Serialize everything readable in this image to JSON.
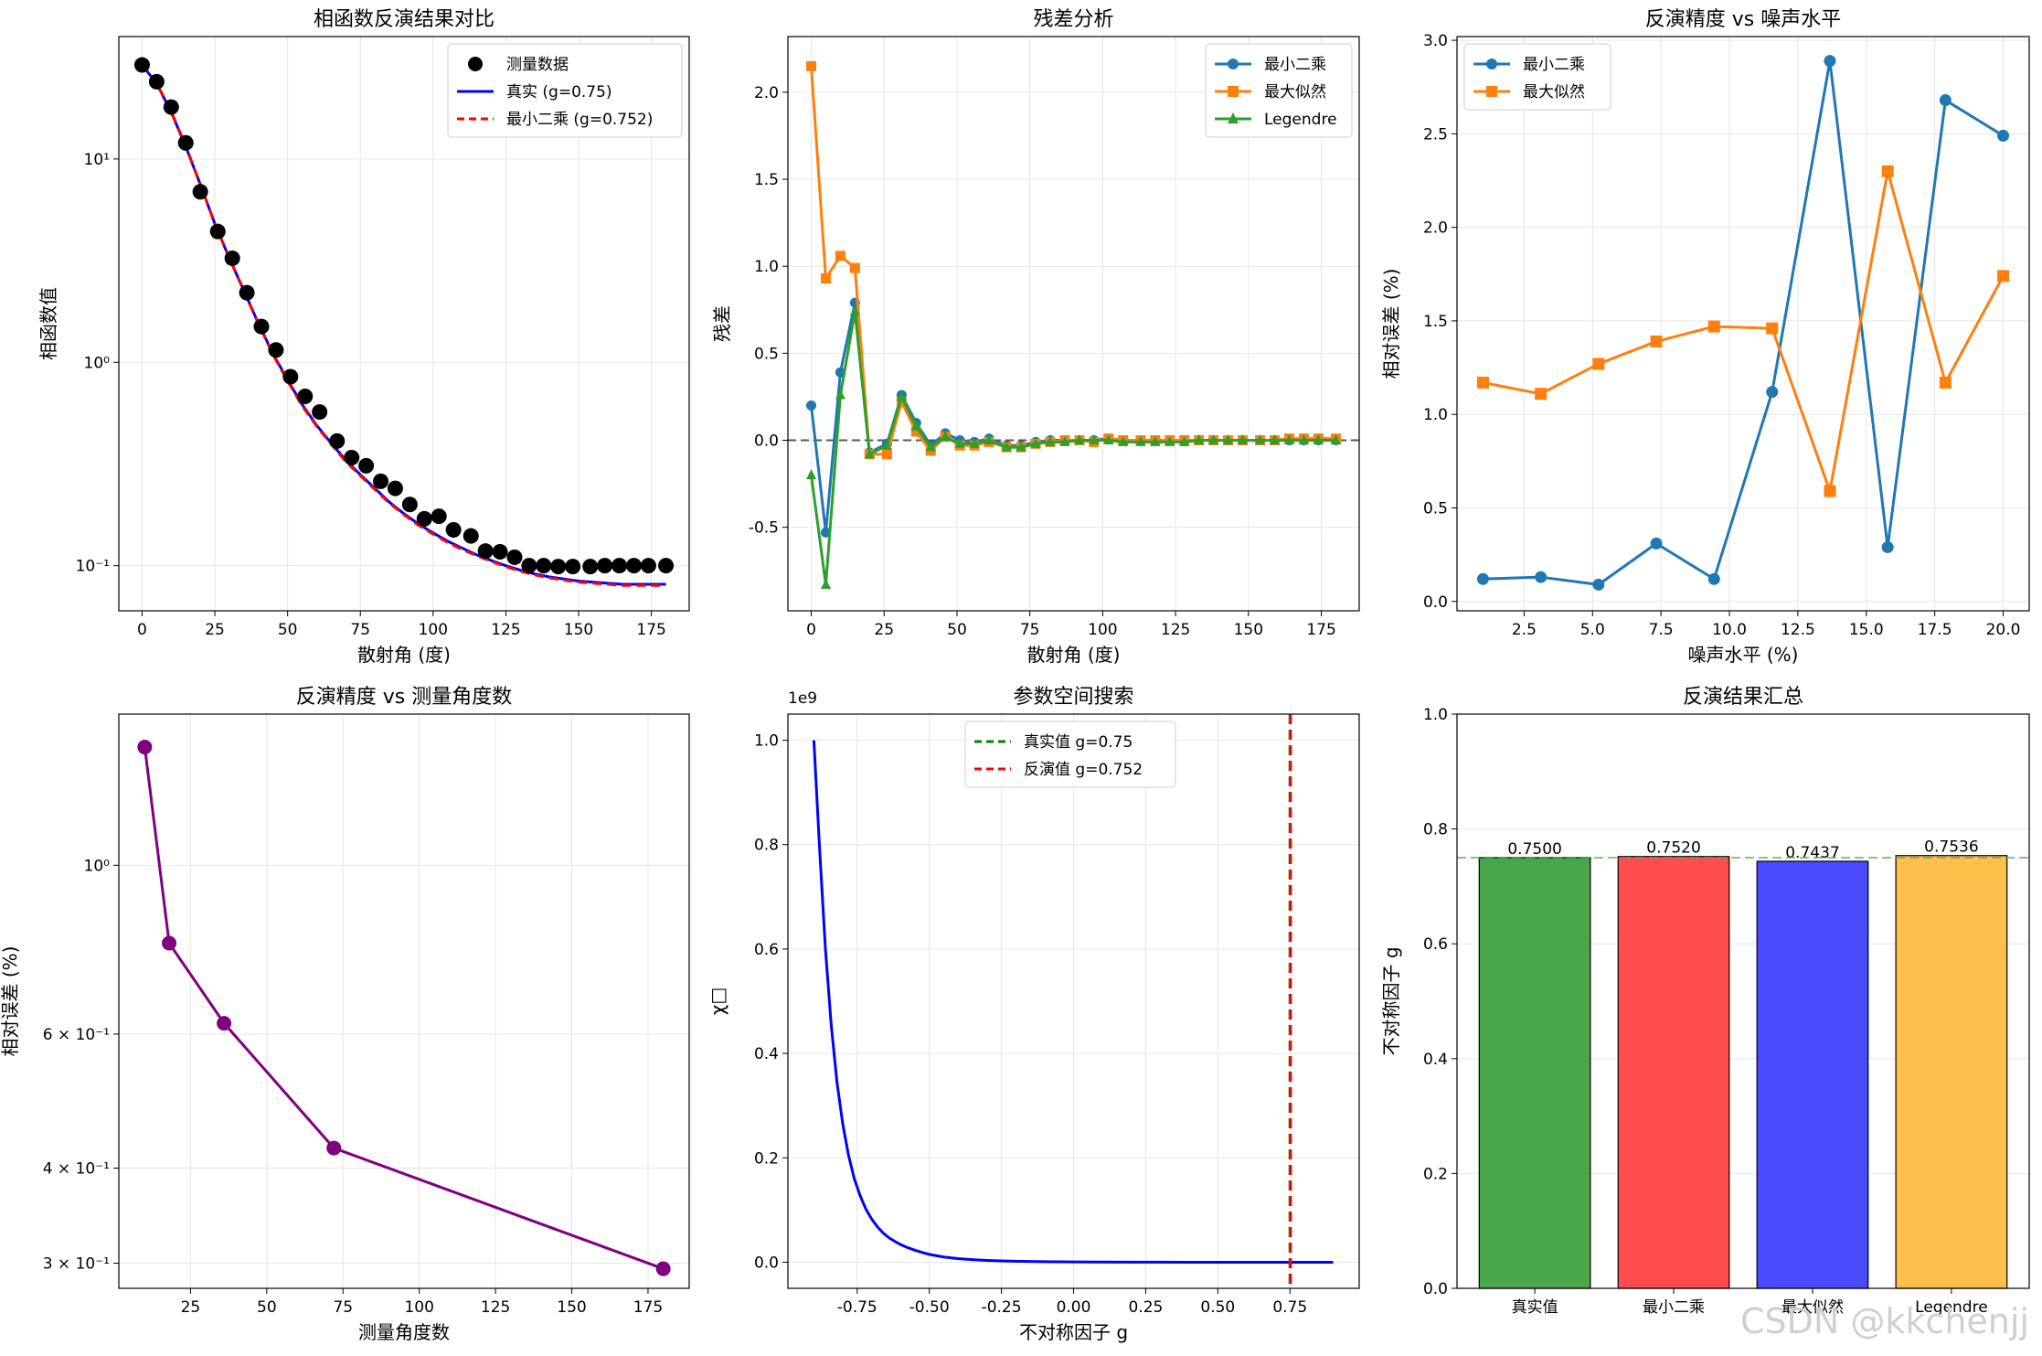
{
  "watermark": "CSDN @kkchenjj",
  "chart_data": [
    {
      "type": "scatter",
      "title": "相函数反演结果对比",
      "xlabel": "散射角 (度)",
      "ylabel": "相函数值",
      "yscale": "log",
      "xlim": [
        -8,
        188
      ],
      "ylim": [
        0.06,
        40
      ],
      "xticks": [
        0,
        25,
        50,
        75,
        100,
        125,
        150,
        175
      ],
      "yticks": [
        {
          "v": 10,
          "label": "10¹"
        },
        {
          "v": 1,
          "label": "10⁰"
        },
        {
          "v": 0.1,
          "label": "10⁻¹"
        }
      ],
      "grid": true,
      "legend_position": "top-right",
      "series": [
        {
          "name": "测量数据",
          "kind": "scatter",
          "color": "#000000",
          "x": [
            0,
            5,
            10,
            15,
            20,
            26,
            31,
            36,
            41,
            46,
            51,
            56,
            61,
            67,
            72,
            77,
            82,
            87,
            92,
            97,
            102,
            107,
            113,
            118,
            123,
            128,
            133,
            138,
            143,
            148,
            154,
            159,
            164,
            169,
            174,
            180
          ],
          "y": [
            29.0,
            24.0,
            18.0,
            12.0,
            6.9,
            4.4,
            3.25,
            2.2,
            1.5,
            1.15,
            0.85,
            0.68,
            0.57,
            0.41,
            0.34,
            0.31,
            0.26,
            0.24,
            0.2,
            0.17,
            0.175,
            0.15,
            0.14,
            0.118,
            0.117,
            0.11,
            0.1,
            0.1,
            0.099,
            0.099,
            0.099,
            0.1,
            0.1,
            0.1,
            0.1,
            0.1
          ]
        },
        {
          "name": "真实 (g=0.75)",
          "kind": "line",
          "color": "#0000ff",
          "x": [
            0,
            5,
            10,
            15,
            20,
            25,
            30,
            35,
            40,
            45,
            50,
            55,
            60,
            65,
            70,
            75,
            80,
            85,
            90,
            95,
            100,
            105,
            110,
            115,
            120,
            125,
            130,
            135,
            140,
            145,
            150,
            155,
            160,
            165,
            170,
            175,
            180
          ],
          "y": [
            29.0,
            23.5,
            17.0,
            11.5,
            7.5,
            4.8,
            3.25,
            2.25,
            1.55,
            1.1,
            0.82,
            0.62,
            0.49,
            0.4,
            0.33,
            0.28,
            0.24,
            0.205,
            0.18,
            0.16,
            0.145,
            0.132,
            0.122,
            0.113,
            0.106,
            0.1,
            0.095,
            0.091,
            0.088,
            0.086,
            0.084,
            0.083,
            0.082,
            0.081,
            0.081,
            0.081,
            0.081
          ]
        },
        {
          "name": "最小二乘 (g=0.752)",
          "kind": "dashed",
          "color": "#ff0000",
          "x": [
            0,
            5,
            10,
            15,
            20,
            25,
            30,
            35,
            40,
            45,
            50,
            55,
            60,
            65,
            70,
            75,
            80,
            85,
            90,
            95,
            100,
            105,
            110,
            115,
            120,
            125,
            130,
            135,
            140,
            145,
            150,
            155,
            160,
            165,
            170,
            175,
            180
          ],
          "y": [
            29.2,
            23.6,
            17.1,
            11.6,
            7.5,
            4.8,
            3.25,
            2.24,
            1.54,
            1.09,
            0.81,
            0.61,
            0.485,
            0.395,
            0.325,
            0.277,
            0.237,
            0.203,
            0.178,
            0.158,
            0.143,
            0.13,
            0.12,
            0.112,
            0.105,
            0.099,
            0.094,
            0.09,
            0.087,
            0.085,
            0.083,
            0.082,
            0.081,
            0.08,
            0.08,
            0.08,
            0.08
          ]
        }
      ]
    },
    {
      "type": "line",
      "title": "残差分析",
      "xlabel": "散射角 (度)",
      "ylabel": "残差",
      "xlim": [
        -8,
        188
      ],
      "ylim": [
        -0.98,
        2.32
      ],
      "xticks": [
        0,
        25,
        50,
        75,
        100,
        125,
        150,
        175
      ],
      "yticks": [
        -0.5,
        0.0,
        0.5,
        1.0,
        1.5,
        2.0
      ],
      "reference_line": 0,
      "grid": true,
      "legend_position": "top-right",
      "x": [
        0,
        5,
        10,
        15,
        20,
        26,
        31,
        36,
        41,
        46,
        51,
        56,
        61,
        67,
        72,
        77,
        82,
        87,
        92,
        97,
        102,
        107,
        113,
        118,
        123,
        128,
        133,
        138,
        143,
        148,
        154,
        159,
        164,
        169,
        174,
        180
      ],
      "series": [
        {
          "name": "最小二乘",
          "marker": "circle",
          "color": "#1f77b4",
          "values": [
            0.2,
            -0.53,
            0.39,
            0.79,
            -0.07,
            -0.02,
            0.26,
            0.1,
            -0.03,
            0.04,
            0.0,
            -0.01,
            0.01,
            -0.03,
            -0.03,
            -0.01,
            0.0,
            0.0,
            0.0,
            0.0,
            0.01,
            0.0,
            0.0,
            0.0,
            0.0,
            0.0,
            0.0,
            0.0,
            0.0,
            0.0,
            0.0,
            0.0,
            0.0,
            0.0,
            0.0,
            0.0
          ]
        },
        {
          "name": "最大似然",
          "marker": "square",
          "color": "#ff7f0e",
          "values": [
            2.15,
            0.93,
            1.06,
            0.99,
            -0.08,
            -0.08,
            0.22,
            0.05,
            -0.06,
            0.02,
            -0.03,
            -0.03,
            -0.01,
            -0.04,
            -0.04,
            -0.02,
            -0.01,
            0.0,
            0.0,
            -0.01,
            0.01,
            0.0,
            0.0,
            0.0,
            0.0,
            0.0,
            0.0,
            0.0,
            0.0,
            0.0,
            0.0,
            0.0,
            0.01,
            0.01,
            0.01,
            0.01
          ]
        },
        {
          "name": "Legendre",
          "marker": "triangle",
          "color": "#2ca02c",
          "values": [
            -0.2,
            -0.83,
            0.26,
            0.74,
            -0.08,
            -0.03,
            0.25,
            0.08,
            -0.04,
            0.02,
            -0.02,
            -0.02,
            0.0,
            -0.04,
            -0.04,
            -0.02,
            -0.01,
            -0.01,
            0.0,
            0.0,
            0.0,
            -0.01,
            -0.01,
            -0.01,
            -0.01,
            -0.01,
            0.0,
            0.0,
            0.0,
            0.0,
            0.0,
            0.0,
            0.0,
            0.0,
            0.0,
            0.0
          ]
        }
      ]
    },
    {
      "type": "line",
      "title": "反演精度 vs 噪声水平",
      "xlabel": "噪声水平 (%)",
      "ylabel": "相对误差 (%)",
      "xlim": [
        0.05,
        20.95
      ],
      "ylim": [
        -0.05,
        3.02
      ],
      "xticks": [
        2.5,
        5.0,
        7.5,
        10.0,
        12.5,
        15.0,
        17.5,
        20.0
      ],
      "yticks": [
        0.0,
        0.5,
        1.0,
        1.5,
        2.0,
        2.5,
        3.0
      ],
      "grid": true,
      "legend_position": "top-left",
      "x": [
        1.0,
        3.11,
        5.22,
        7.33,
        9.44,
        11.56,
        13.67,
        15.78,
        17.89,
        20.0
      ],
      "series": [
        {
          "name": "最小二乘",
          "marker": "circle",
          "color": "#1f77b4",
          "values": [
            0.12,
            0.13,
            0.09,
            0.31,
            0.12,
            1.12,
            2.89,
            0.29,
            2.68,
            2.49
          ]
        },
        {
          "name": "最大似然",
          "marker": "square",
          "color": "#ff7f0e",
          "values": [
            1.17,
            1.11,
            1.27,
            1.39,
            1.47,
            1.46,
            0.59,
            2.3,
            1.17,
            1.74
          ]
        }
      ]
    },
    {
      "type": "line",
      "title": "反演精度 vs 测量角度数",
      "xlabel": "测量角度数",
      "ylabel": "相对误差 (%)",
      "yscale": "log",
      "xlim": [
        1.5,
        188.5
      ],
      "ylim": [
        0.278,
        1.58
      ],
      "xticks": [
        25,
        50,
        75,
        100,
        125,
        150,
        175
      ],
      "yticks": [
        {
          "v": 1.0,
          "label": "10⁰"
        },
        {
          "v": 0.6,
          "label": "6 × 10⁻¹"
        },
        {
          "v": 0.4,
          "label": "4 × 10⁻¹"
        },
        {
          "v": 0.3,
          "label": "3 × 10⁻¹"
        }
      ],
      "grid": true,
      "x": [
        10,
        18,
        36,
        72,
        180
      ],
      "series": [
        {
          "name": "",
          "marker": "circle",
          "color": "#800080",
          "values": [
            1.43,
            0.79,
            0.62,
            0.425,
            0.295
          ]
        }
      ]
    },
    {
      "type": "line",
      "title": "参数空间搜索",
      "xlabel": "不对称因子 g",
      "ylabel": "χ□",
      "offset_label": "1e9",
      "xlim": [
        -0.99,
        0.99
      ],
      "ylim": [
        -0.05,
        1.05
      ],
      "xticks": [
        -0.75,
        -0.5,
        -0.25,
        0.0,
        0.25,
        0.5,
        0.75
      ],
      "yticks": [
        0.0,
        0.2,
        0.4,
        0.6,
        0.8,
        1.0
      ],
      "grid": true,
      "legend_position": "top-center",
      "x": [
        -0.9,
        -0.88,
        -0.86,
        -0.84,
        -0.82,
        -0.8,
        -0.78,
        -0.76,
        -0.74,
        -0.72,
        -0.7,
        -0.68,
        -0.66,
        -0.64,
        -0.62,
        -0.6,
        -0.58,
        -0.55,
        -0.52,
        -0.5,
        -0.45,
        -0.4,
        -0.35,
        -0.3,
        -0.25,
        -0.2,
        -0.1,
        0.0,
        0.1,
        0.2,
        0.3,
        0.4,
        0.5,
        0.6,
        0.7,
        0.8,
        0.9
      ],
      "series": [
        {
          "name": "χ²",
          "color": "#0000ff",
          "values": [
            1.0,
            0.79,
            0.6,
            0.455,
            0.345,
            0.265,
            0.205,
            0.16,
            0.128,
            0.102,
            0.083,
            0.068,
            0.056,
            0.047,
            0.04,
            0.034,
            0.029,
            0.023,
            0.018,
            0.015,
            0.01,
            0.007,
            0.005,
            0.0035,
            0.0025,
            0.0018,
            0.001,
            0.0006,
            0.0004,
            0.0002,
            0.0001,
            0.0,
            0.0,
            0.0,
            0.0,
            0.0,
            0.0
          ]
        }
      ],
      "vlines": [
        {
          "name": "真实值 g=0.75",
          "x": 0.75,
          "color": "#008000"
        },
        {
          "name": "反演值 g=0.752",
          "x": 0.752,
          "color": "#ff0000"
        }
      ]
    },
    {
      "type": "bar",
      "title": "反演结果汇总",
      "ylabel": "不对称因子 g",
      "ylim": [
        0,
        1.0
      ],
      "yticks": [
        0.0,
        0.2,
        0.4,
        0.6,
        0.8,
        1.0
      ],
      "reference_line": 0.75,
      "grid": true,
      "categories": [
        "真实值",
        "最小二乘",
        "最大似然",
        "Legendre"
      ],
      "values": [
        0.75,
        0.752,
        0.7437,
        0.7536
      ],
      "value_labels": [
        "0.7500",
        "0.7520",
        "0.7437",
        "0.7536"
      ],
      "colors": [
        "#4aa64a",
        "#ff4d4d",
        "#4a4aff",
        "#ffbf4d"
      ]
    }
  ]
}
